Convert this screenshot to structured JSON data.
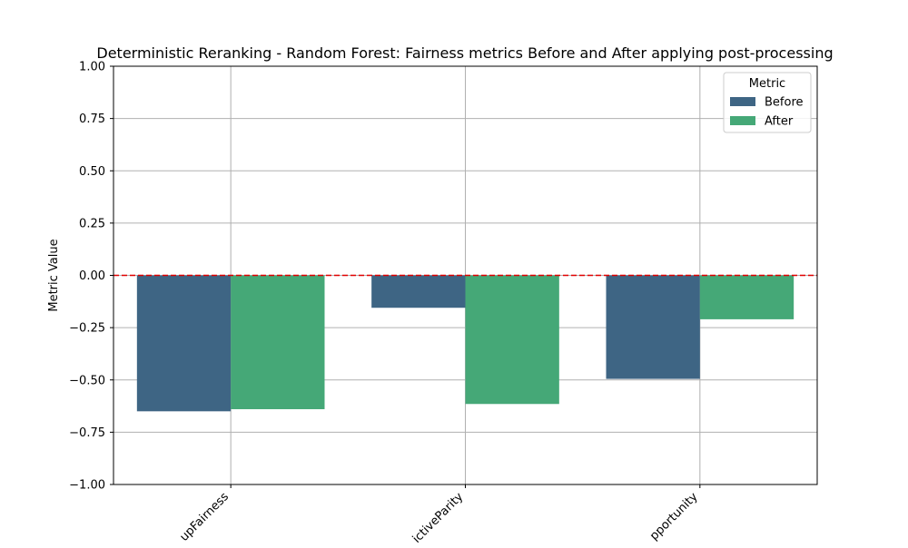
{
  "chart_data": {
    "type": "bar",
    "title": "Deterministic Reranking - Random Forest: Fairness metrics Before and After applying post-processing",
    "xlabel": "",
    "ylabel": "Metric Value",
    "ylim": [
      -1.0,
      1.0
    ],
    "yticks": [
      "1.00",
      "0.75",
      "0.50",
      "0.25",
      "0.00",
      "−0.25",
      "−0.50",
      "−0.75",
      "−1.00"
    ],
    "ytick_values": [
      1.0,
      0.75,
      0.5,
      0.25,
      0.0,
      -0.25,
      -0.5,
      -0.75,
      -1.0
    ],
    "categories": [
      "upFairness",
      "ictiveParity",
      "pportunity"
    ],
    "series": [
      {
        "name": "Before",
        "color": "#3e6584",
        "values": [
          -0.65,
          -0.155,
          -0.495
        ]
      },
      {
        "name": "After",
        "color": "#45a877",
        "values": [
          -0.64,
          -0.615,
          -0.21
        ]
      }
    ],
    "reference_line": {
      "value": 0.0,
      "color": "#e00000",
      "style": "dashed"
    },
    "grid": true,
    "legend": {
      "title": "Metric",
      "placement": "top-right"
    }
  }
}
